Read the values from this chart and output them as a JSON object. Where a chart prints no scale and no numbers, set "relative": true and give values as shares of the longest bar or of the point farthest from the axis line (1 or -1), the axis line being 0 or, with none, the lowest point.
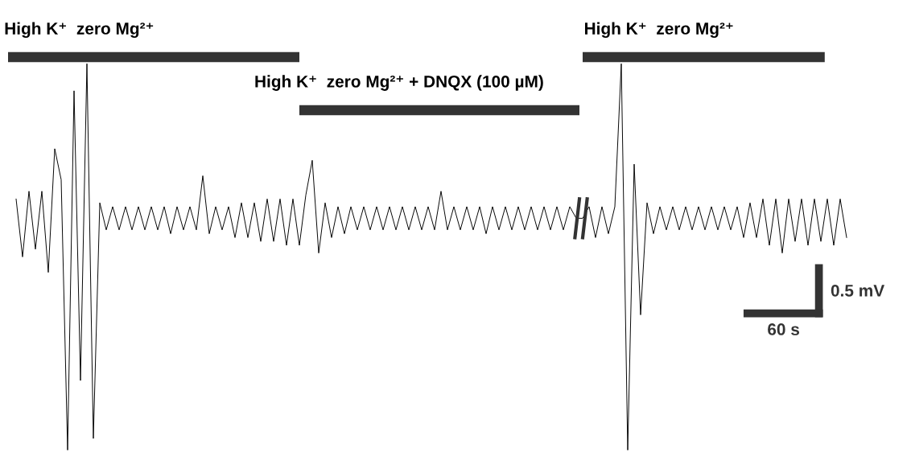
{
  "chart_data": {
    "type": "line",
    "relative": true,
    "categories": [
      null,
      null,
      null,
      null,
      null,
      null,
      null,
      null,
      null,
      null,
      null,
      null,
      null,
      null,
      null,
      null,
      null,
      null,
      null,
      null,
      null,
      null,
      null,
      null,
      null,
      null,
      null,
      null,
      null,
      null,
      null,
      null,
      null,
      null,
      null,
      null,
      null,
      null,
      null,
      null,
      null,
      null,
      null,
      null,
      null,
      null,
      null,
      null,
      null,
      null,
      null,
      null,
      null,
      null,
      null,
      null,
      null,
      null,
      null,
      null,
      null,
      null,
      null,
      null,
      null,
      null,
      null,
      null,
      null,
      null,
      null,
      null,
      null,
      null,
      null,
      null,
      null,
      null,
      null,
      null,
      null,
      null,
      null,
      null,
      null,
      null,
      null,
      null,
      null,
      null,
      null,
      null,
      null,
      null,
      null,
      null,
      null,
      null,
      null,
      null,
      null,
      null,
      null,
      null,
      null,
      null,
      null,
      null,
      null,
      null,
      null,
      null,
      null,
      null,
      null,
      null,
      null,
      null,
      null,
      null,
      null,
      null,
      null,
      null,
      null,
      null,
      null,
      null,
      null,
      null
    ],
    "series": [
      {
        "color": "#000000",
        "values": [
          0.65,
          0.5,
          0.67,
          0.52,
          0.67,
          0.46,
          0.78,
          0.7,
          0.0,
          0.93,
          0.18,
          1.0,
          0.03,
          0.64,
          0.57,
          0.63,
          0.57,
          0.63,
          0.57,
          0.63,
          0.57,
          0.63,
          0.57,
          0.63,
          0.56,
          0.63,
          0.57,
          0.63,
          0.57,
          0.71,
          0.56,
          0.63,
          0.57,
          0.63,
          0.55,
          0.64,
          0.55,
          0.64,
          0.54,
          0.65,
          0.54,
          0.65,
          0.53,
          0.65,
          0.53,
          0.66,
          0.75,
          0.51,
          0.64,
          0.55,
          0.63,
          0.56,
          0.63,
          0.57,
          0.63,
          0.57,
          0.63,
          0.57,
          0.63,
          0.57,
          0.63,
          0.57,
          0.63,
          0.57,
          0.63,
          0.57,
          0.67,
          0.57,
          0.63,
          0.57,
          0.63,
          0.57,
          0.63,
          0.56,
          0.63,
          0.57,
          0.63,
          0.57,
          0.63,
          0.57,
          0.63,
          0.57,
          0.63,
          0.57,
          0.63,
          0.57,
          0.63,
          0.6,
          0.6,
          0.63,
          0.55,
          0.63,
          0.56,
          0.63,
          1.0,
          0.0,
          0.74,
          0.35,
          0.64,
          0.56,
          0.63,
          0.57,
          0.63,
          0.57,
          0.63,
          0.57,
          0.63,
          0.57,
          0.63,
          0.57,
          0.63,
          0.57,
          0.63,
          0.55,
          0.64,
          0.55,
          0.65,
          0.53,
          0.65,
          0.51,
          0.65,
          0.54,
          0.65,
          0.53,
          0.65,
          0.54,
          0.65,
          0.53,
          0.65,
          0.55
        ]
      }
    ],
    "annotations": [
      "High K⁺  zero Mg²⁺",
      "High K⁺  zero Mg²⁺ + DNQX (100 µM)",
      "High K⁺  zero Mg²⁺",
      "0.5 mV",
      "60 s"
    ]
  }
}
